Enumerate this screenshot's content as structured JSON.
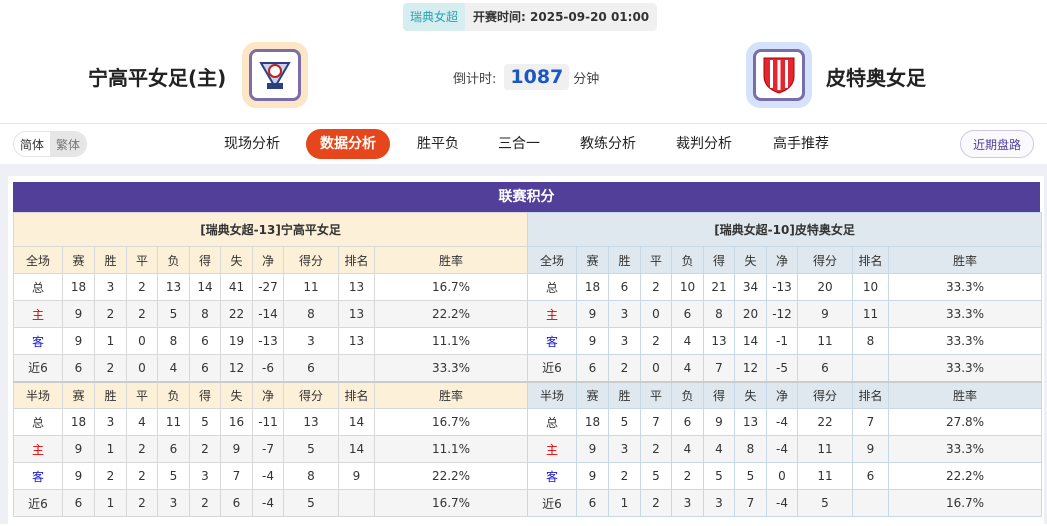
{
  "header": {
    "league": "瑞典女超",
    "kickoff_label": "开赛时间:",
    "kickoff": "2025-09-20 01:00",
    "home_team": "宁高平女足(主)",
    "away_team": "皮特奥女足",
    "countdown_label": "倒计时:",
    "countdown_value": "1087",
    "countdown_unit": "分钟"
  },
  "nav": {
    "lang": [
      "简体",
      "繁体"
    ],
    "tabs": [
      "现场分析",
      "数据分析",
      "胜平负",
      "三合一",
      "教练分析",
      "裁判分析",
      "高手推荐"
    ],
    "active_tab": "数据分析",
    "recent_button": "近期盘路"
  },
  "colors": {
    "accent": "#e5461b",
    "title_bar": "#523f9a",
    "home_color": "#e00000",
    "away_color": "#1a1ad0"
  },
  "standings": {
    "title": "联赛积分",
    "columns": [
      "赛",
      "胜",
      "平",
      "负",
      "得",
      "失",
      "净",
      "得分",
      "排名",
      "胜率"
    ],
    "home": {
      "team_label": "[瑞典女超-13]宁高平女足",
      "full": {
        "label": "全场",
        "rows": [
          [
            "总",
            "18",
            "3",
            "2",
            "13",
            "14",
            "41",
            "-27",
            "11",
            "13",
            "16.7%"
          ],
          [
            "主",
            "9",
            "2",
            "2",
            "5",
            "8",
            "22",
            "-14",
            "8",
            "13",
            "22.2%"
          ],
          [
            "客",
            "9",
            "1",
            "0",
            "8",
            "6",
            "19",
            "-13",
            "3",
            "13",
            "11.1%"
          ],
          [
            "近6",
            "6",
            "2",
            "0",
            "4",
            "6",
            "12",
            "-6",
            "6",
            "",
            "33.3%"
          ]
        ]
      },
      "half": {
        "label": "半场",
        "rows": [
          [
            "总",
            "18",
            "3",
            "4",
            "11",
            "5",
            "16",
            "-11",
            "13",
            "14",
            "16.7%"
          ],
          [
            "主",
            "9",
            "1",
            "2",
            "6",
            "2",
            "9",
            "-7",
            "5",
            "14",
            "11.1%"
          ],
          [
            "客",
            "9",
            "2",
            "2",
            "5",
            "3",
            "7",
            "-4",
            "8",
            "9",
            "22.2%"
          ],
          [
            "近6",
            "6",
            "1",
            "2",
            "3",
            "2",
            "6",
            "-4",
            "5",
            "",
            "16.7%"
          ]
        ]
      }
    },
    "away": {
      "team_label": "[瑞典女超-10]皮特奥女足",
      "full": {
        "label": "全场",
        "rows": [
          [
            "总",
            "18",
            "6",
            "2",
            "10",
            "21",
            "34",
            "-13",
            "20",
            "10",
            "33.3%"
          ],
          [
            "主",
            "9",
            "3",
            "0",
            "6",
            "8",
            "20",
            "-12",
            "9",
            "11",
            "33.3%"
          ],
          [
            "客",
            "9",
            "3",
            "2",
            "4",
            "13",
            "14",
            "-1",
            "11",
            "8",
            "33.3%"
          ],
          [
            "近6",
            "6",
            "2",
            "0",
            "4",
            "7",
            "12",
            "-5",
            "6",
            "",
            "33.3%"
          ]
        ]
      },
      "half": {
        "label": "半场",
        "rows": [
          [
            "总",
            "18",
            "5",
            "7",
            "6",
            "9",
            "13",
            "-4",
            "22",
            "7",
            "27.8%"
          ],
          [
            "主",
            "9",
            "3",
            "2",
            "4",
            "4",
            "8",
            "-4",
            "11",
            "9",
            "33.3%"
          ],
          [
            "客",
            "9",
            "2",
            "5",
            "2",
            "5",
            "5",
            "0",
            "11",
            "6",
            "22.2%"
          ],
          [
            "近6",
            "6",
            "1",
            "2",
            "3",
            "3",
            "7",
            "-4",
            "5",
            "",
            "16.7%"
          ]
        ]
      }
    }
  }
}
